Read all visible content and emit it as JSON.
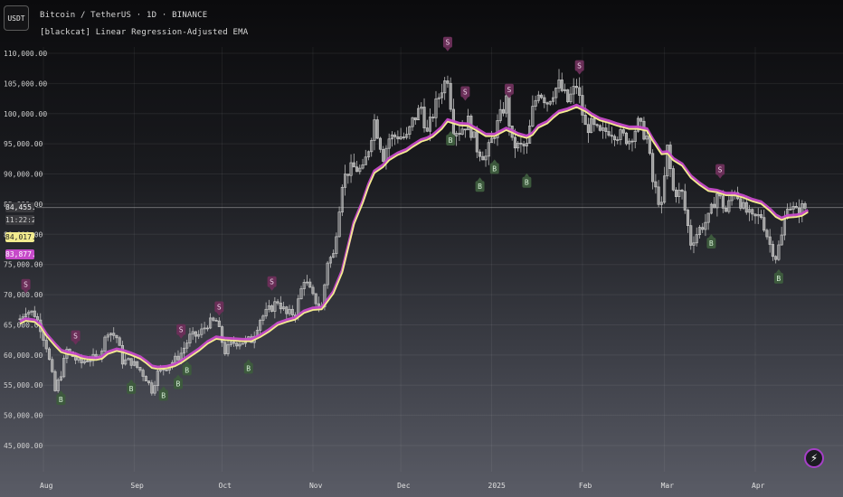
{
  "header": {
    "currency_button": "USDT",
    "symbol_line": "Bitcoin / TetherUS · 1D · BINANCE",
    "indicator_line": "[blackcat] Linear Regression-Adjusted EMA"
  },
  "price_tags": {
    "last_price": "84,455.61",
    "countdown": "11:22:25",
    "ema_fast": "84,017.44",
    "ema_slow": "83,877.71"
  },
  "colors": {
    "ema_fast": "#f3ec8f",
    "ema_slow": "#c64ac9",
    "candle": "#c8c8c8",
    "buy_label_bg": "#3d5a3d",
    "sell_label_bg": "#6a2f58",
    "bolt_ring": "#a640c8"
  },
  "icons": {
    "bolt": "lightning-icon"
  },
  "chart_data": {
    "type": "candlestick",
    "title": "Bitcoin / TetherUS · 1D · BINANCE",
    "y_axis_ticks": [
      110000,
      105000,
      100000,
      95000,
      90000,
      85000,
      80000,
      75000,
      70000,
      65000,
      60000,
      55000,
      50000,
      45000
    ],
    "y_tick_labels": [
      "110,000.00",
      "105,000.00",
      "100,000.00",
      "95,000.00",
      "90,000.00",
      "85,000.00",
      "80,000.00",
      "75,000.00",
      "70,000.00",
      "65,000.00",
      "60,000.00",
      "55,000.00",
      "50,000.00",
      "45,000.00"
    ],
    "ylim": [
      41000,
      112000
    ],
    "x_axis_labels": [
      "Aug",
      "Sep",
      "Oct",
      "Nov",
      "Dec",
      "2025",
      "Feb",
      "Mar",
      "Apr"
    ],
    "grid": true,
    "close_series": [
      [
        "2024-07-24",
        66000
      ],
      [
        "2024-07-26",
        67500
      ],
      [
        "2024-07-29",
        66800
      ],
      [
        "2024-07-31",
        64600
      ],
      [
        "2024-08-02",
        61500
      ],
      [
        "2024-08-05",
        54000
      ],
      [
        "2024-08-07",
        57000
      ],
      [
        "2024-08-09",
        60800
      ],
      [
        "2024-08-12",
        59300
      ],
      [
        "2024-08-14",
        58700
      ],
      [
        "2024-08-16",
        59400
      ],
      [
        "2024-08-19",
        59400
      ],
      [
        "2024-08-21",
        61100
      ],
      [
        "2024-08-23",
        64100
      ],
      [
        "2024-08-26",
        62900
      ],
      [
        "2024-08-28",
        59000
      ],
      [
        "2024-08-31",
        58900
      ],
      [
        "2024-09-03",
        57500
      ],
      [
        "2024-09-05",
        56200
      ],
      [
        "2024-09-07",
        54200
      ],
      [
        "2024-09-09",
        57000
      ],
      [
        "2024-09-12",
        58100
      ],
      [
        "2024-09-15",
        59200
      ],
      [
        "2024-09-17",
        60300
      ],
      [
        "2024-09-20",
        63000
      ],
      [
        "2024-09-23",
        63300
      ],
      [
        "2024-09-26",
        65200
      ],
      [
        "2024-09-29",
        65600
      ],
      [
        "2024-10-02",
        60600
      ],
      [
        "2024-10-05",
        62100
      ],
      [
        "2024-10-08",
        62200
      ],
      [
        "2024-10-11",
        62500
      ],
      [
        "2024-10-14",
        66000
      ],
      [
        "2024-10-17",
        67400
      ],
      [
        "2024-10-20",
        69000
      ],
      [
        "2024-10-23",
        66700
      ],
      [
        "2024-10-26",
        67000
      ],
      [
        "2024-10-29",
        72700
      ],
      [
        "2024-11-01",
        69500
      ],
      [
        "2024-11-04",
        67800
      ],
      [
        "2024-11-06",
        75600
      ],
      [
        "2024-11-08",
        76500
      ],
      [
        "2024-11-11",
        88700
      ],
      [
        "2024-11-13",
        90500
      ],
      [
        "2024-11-15",
        91000
      ],
      [
        "2024-11-18",
        90500
      ],
      [
        "2024-11-20",
        94300
      ],
      [
        "2024-11-22",
        98900
      ],
      [
        "2024-11-25",
        93000
      ],
      [
        "2024-11-27",
        95900
      ],
      [
        "2024-11-30",
        96400
      ],
      [
        "2024-12-03",
        95900
      ],
      [
        "2024-12-05",
        98700
      ],
      [
        "2024-12-08",
        101100
      ],
      [
        "2024-12-10",
        96600
      ],
      [
        "2024-12-12",
        100000
      ],
      [
        "2024-12-15",
        104300
      ],
      [
        "2024-12-17",
        106100
      ],
      [
        "2024-12-19",
        97500
      ],
      [
        "2024-12-21",
        97200
      ],
      [
        "2024-12-24",
        98700
      ],
      [
        "2024-12-27",
        94300
      ],
      [
        "2024-12-30",
        92800
      ],
      [
        "2025-01-02",
        96900
      ],
      [
        "2025-01-06",
        102200
      ],
      [
        "2025-01-08",
        95000
      ],
      [
        "2025-01-10",
        94500
      ],
      [
        "2025-01-13",
        94500
      ],
      [
        "2025-01-15",
        100500
      ],
      [
        "2025-01-17",
        104000
      ],
      [
        "2025-01-20",
        102000
      ],
      [
        "2025-01-22",
        103700
      ],
      [
        "2025-01-24",
        104700
      ],
      [
        "2025-01-27",
        102000
      ],
      [
        "2025-01-30",
        104700
      ],
      [
        "2025-02-02",
        97700
      ],
      [
        "2025-02-04",
        98000
      ],
      [
        "2025-02-07",
        96500
      ],
      [
        "2025-02-10",
        97400
      ],
      [
        "2025-02-13",
        96600
      ],
      [
        "2025-02-17",
        95700
      ],
      [
        "2025-02-20",
        98300
      ],
      [
        "2025-02-23",
        96100
      ],
      [
        "2025-02-25",
        88700
      ],
      [
        "2025-02-28",
        84400
      ],
      [
        "2025-03-02",
        94200
      ],
      [
        "2025-03-04",
        87200
      ],
      [
        "2025-03-07",
        86700
      ],
      [
        "2025-03-10",
        78600
      ],
      [
        "2025-03-13",
        80900
      ],
      [
        "2025-03-16",
        82600
      ],
      [
        "2025-03-19",
        86800
      ],
      [
        "2025-03-22",
        83800
      ],
      [
        "2025-03-25",
        87500
      ],
      [
        "2025-03-28",
        84300
      ],
      [
        "2025-03-31",
        82500
      ],
      [
        "2025-04-03",
        83100
      ],
      [
        "2025-04-06",
        78300
      ],
      [
        "2025-04-08",
        76300
      ],
      [
        "2025-04-10",
        79600
      ],
      [
        "2025-04-12",
        85200
      ],
      [
        "2025-04-15",
        83600
      ],
      [
        "2025-04-17",
        84400
      ],
      [
        "2025-04-19",
        84450
      ]
    ],
    "ema_fast_values": [
      65500,
      66000,
      65800,
      65000,
      63500,
      61800,
      60800,
      60500,
      60200,
      59800,
      59600,
      59500,
      59700,
      60500,
      61000,
      60800,
      60300,
      59700,
      59000,
      58200,
      58000,
      58100,
      58500,
      59000,
      60000,
      61000,
      62200,
      63000,
      62800,
      62700,
      62600,
      62600,
      63300,
      64200,
      65300,
      65800,
      66200,
      67300,
      67800,
      67900,
      69200,
      70500,
      74000,
      78000,
      82000,
      85500,
      88300,
      90500,
      91500,
      92600,
      93500,
      94100,
      94800,
      95700,
      96000,
      96500,
      97800,
      99000,
      98700,
      98400,
      98300,
      97500,
      96600,
      96600,
      97600,
      97200,
      96700,
      96300,
      96800,
      98000,
      98700,
      99600,
      100400,
      100800,
      101400,
      100700,
      100000,
      99200,
      98800,
      98300,
      97800,
      97800,
      97500,
      95800,
      93600,
      93700,
      92600,
      91700,
      89700,
      88500,
      87500,
      87300,
      86800,
      86800,
      86400,
      85800,
      85400,
      84200,
      83200,
      82700,
      83100,
      83200,
      83400,
      84017
    ]
  }
}
